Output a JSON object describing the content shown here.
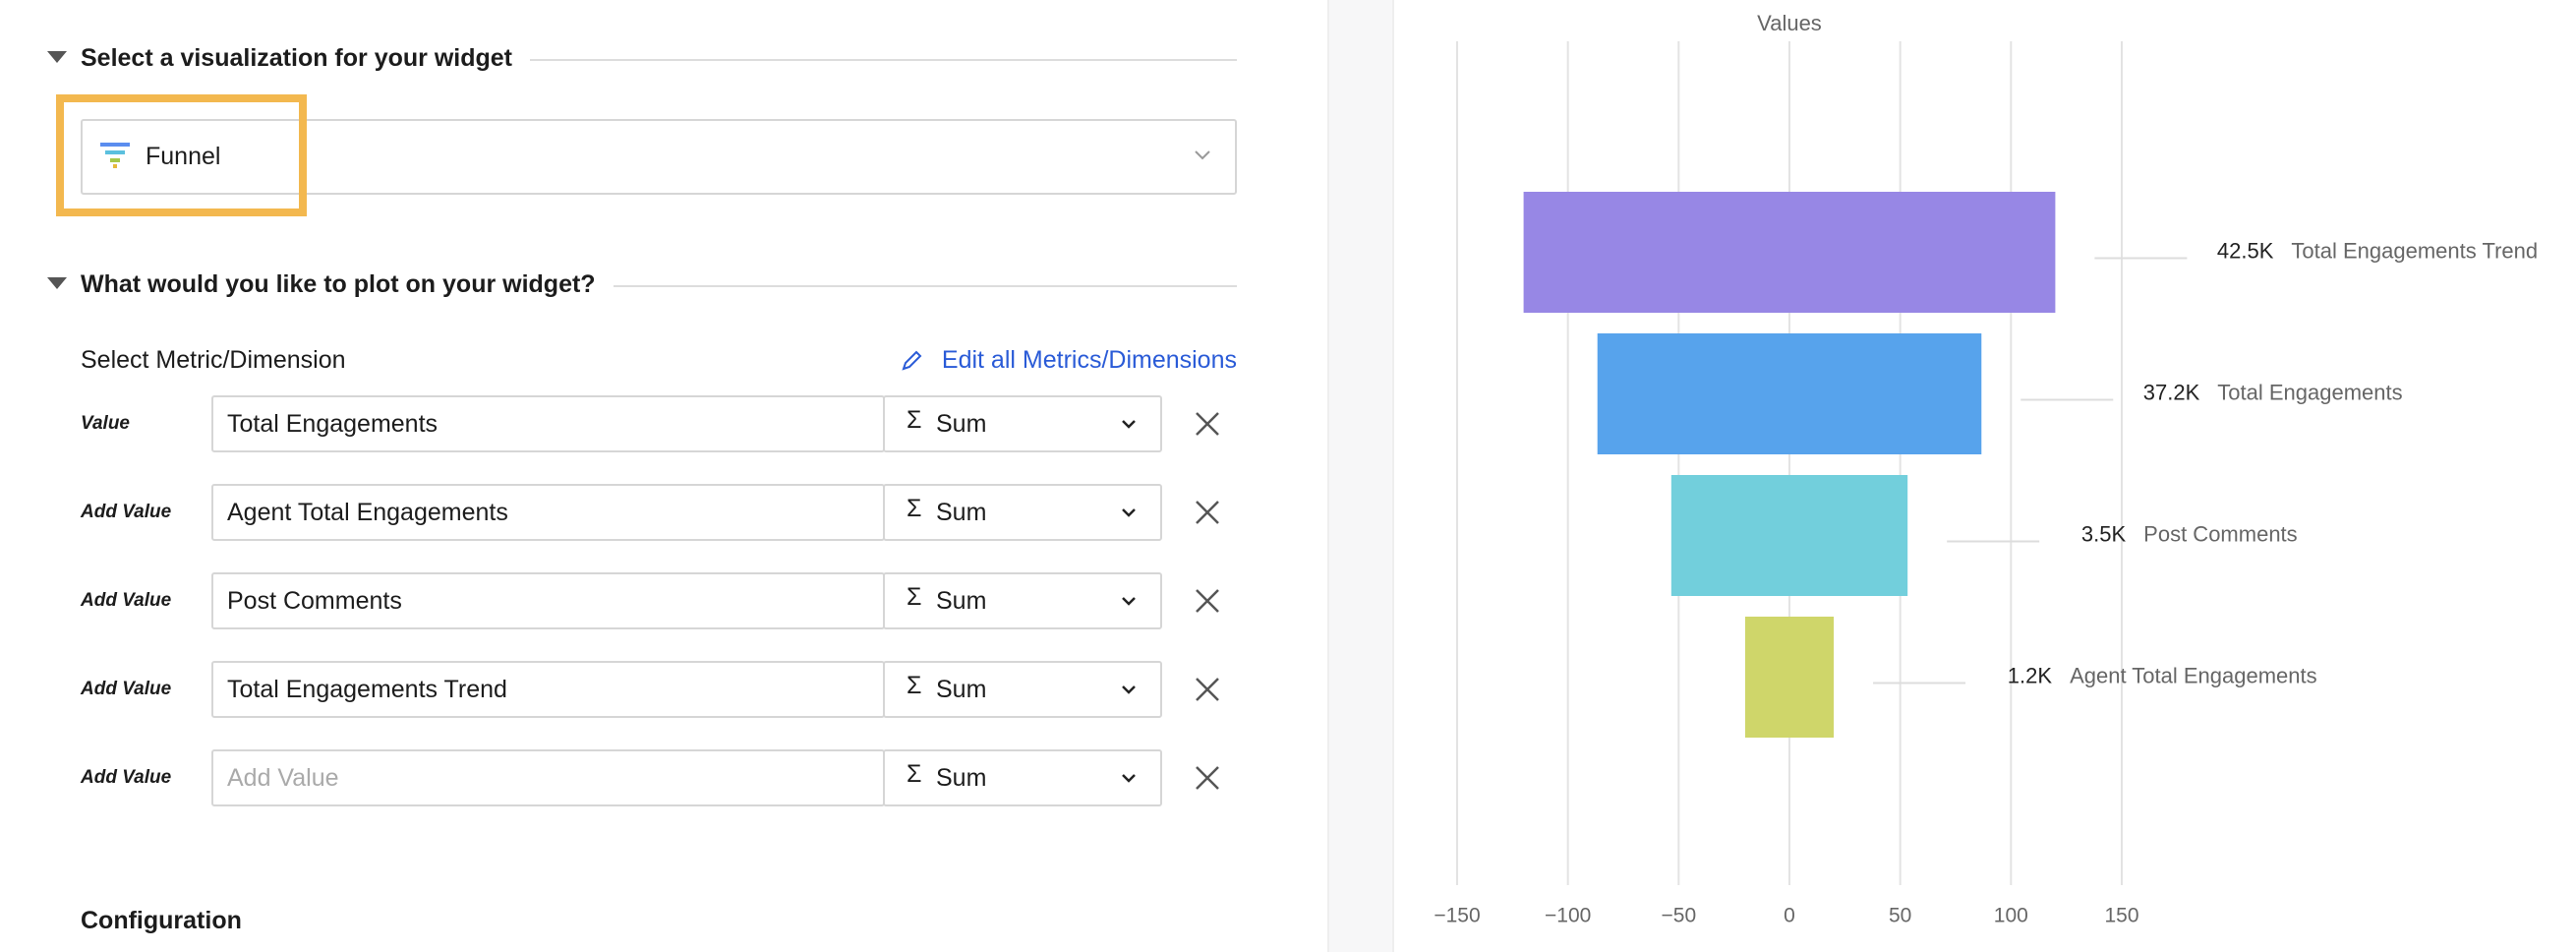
{
  "sections": {
    "visualization": {
      "title": "Select a visualization for your widget",
      "selected": "Funnel"
    },
    "plot": {
      "title": "What would you like to plot on your widget?",
      "subtitle": "Select Metric/Dimension",
      "edit_link": "Edit all Metrics/Dimensions",
      "rows": [
        {
          "label": "Value",
          "field": "Total Engagements",
          "symbol": "Σ",
          "aggregation": "Sum"
        },
        {
          "label": "Add Value",
          "field": "Agent Total Engagements",
          "symbol": "Σ",
          "aggregation": "Sum"
        },
        {
          "label": "Add Value",
          "field": "Post Comments",
          "symbol": "Σ",
          "aggregation": "Sum"
        },
        {
          "label": "Add Value",
          "field": "Total Engagements Trend",
          "symbol": "Σ",
          "aggregation": "Sum"
        },
        {
          "label": "Add Value",
          "placeholder": "Add Value",
          "symbol": "Σ",
          "aggregation": "Sum"
        }
      ]
    },
    "configuration": {
      "title": "Configuration"
    }
  },
  "chart_data": {
    "type": "funnel",
    "x_label": "Values",
    "categories": [
      "Total Engagements Trend",
      "Total Engagements",
      "Post Comments",
      "Agent Total Engagements"
    ],
    "values": [
      42500,
      37200,
      3500,
      1200
    ],
    "value_labels": [
      "42.5K",
      "37.2K",
      "3.5K",
      "1.2K"
    ],
    "colors": [
      "#9787e5",
      "#57a3ec",
      "#72cfdc",
      "#cfd66a"
    ],
    "xlim": [
      -150,
      150
    ],
    "xticks": [
      {
        "value": -150,
        "label": "−150"
      },
      {
        "value": -100,
        "label": "−100"
      },
      {
        "value": -50,
        "label": "−50"
      },
      0,
      50,
      100,
      150
    ],
    "grid": true
  }
}
